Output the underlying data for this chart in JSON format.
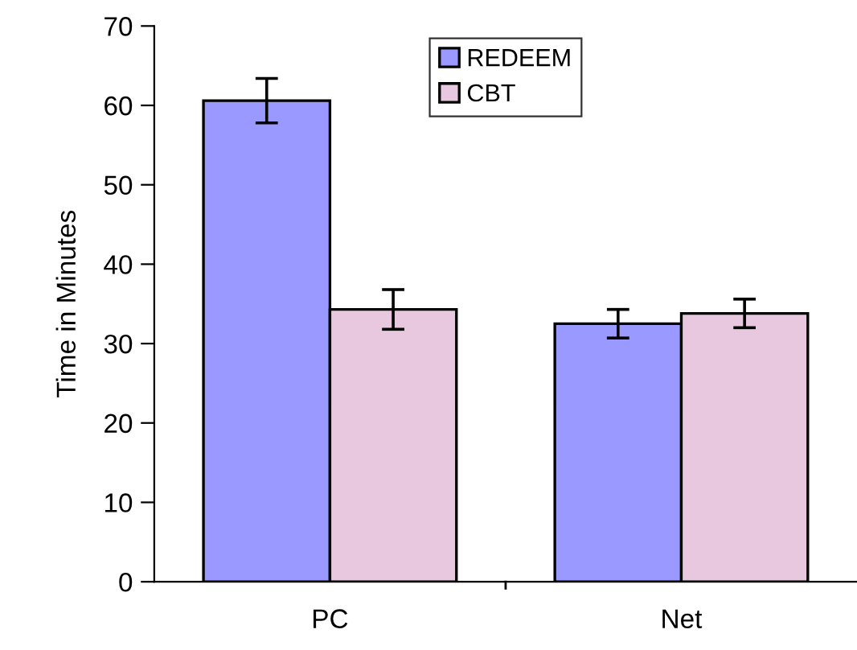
{
  "chart_data": {
    "type": "bar",
    "ylabel": "Time in Minutes",
    "categories": [
      "PC",
      "Net"
    ],
    "series": [
      {
        "name": "REDEEM",
        "color": "#9999ff",
        "values": [
          60.6,
          32.5
        ],
        "errors": [
          2.8,
          1.8
        ]
      },
      {
        "name": "CBT",
        "color": "#e8c8de",
        "values": [
          34.3,
          33.8
        ],
        "errors": [
          2.5,
          1.8
        ]
      }
    ],
    "ylim": [
      0,
      70
    ],
    "yticks": [
      0,
      10,
      20,
      30,
      40,
      50,
      60,
      70
    ],
    "grid": false,
    "legend": "top"
  }
}
